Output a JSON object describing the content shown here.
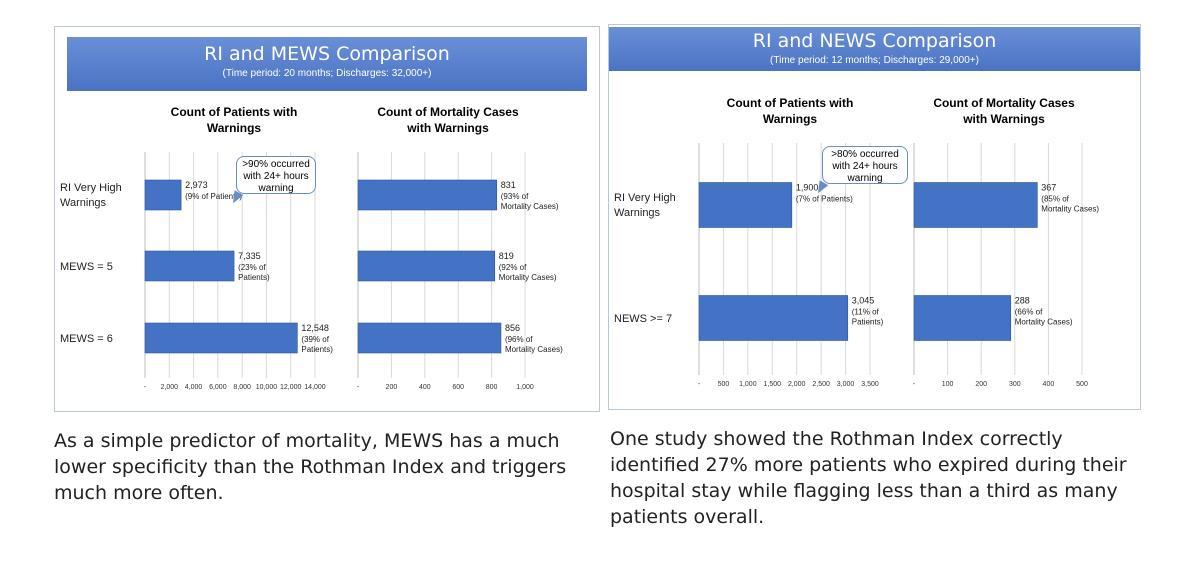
{
  "panels": [
    {
      "title": "RI and MEWS Comparison",
      "subtitle": "(Time period: 20 months; Discharges: 32,000+)",
      "callout": ">90% occurred with 24+ hours warning",
      "caption": "As a simple predictor of mortality, MEWS has a much lower specificity than the Rothman Index and triggers much more often."
    },
    {
      "title": "RI and NEWS Comparison",
      "subtitle": "(Time period: 12 months; Discharges: 29,000+)",
      "callout": ">80% occurred with 24+ hours warning",
      "caption": "One study showed the Rothman Index correctly identified 27% more patients who expired during their hospital stay while flagging less than a third as many patients overall."
    }
  ],
  "chart_data": [
    {
      "type": "bar",
      "title": "Count of Patients with Warnings",
      "categories": [
        "RI Very High Warnings",
        "MEWS = 5",
        "MEWS = 6"
      ],
      "values": [
        2973,
        7335,
        12548
      ],
      "value_labels": [
        "2,973",
        "7,335",
        "12,548"
      ],
      "annotations": [
        "(9% of Patients)",
        "(23% of Patients)",
        "(39% of Patients)"
      ],
      "xlim": [
        0,
        14000
      ],
      "xticks": [
        "-",
        "2,000",
        "4,000",
        "6,000",
        "8,000",
        "10,000",
        "12,000",
        "14,000"
      ],
      "color": "#4472c4"
    },
    {
      "type": "bar",
      "title": "Count of Mortality Cases with Warnings",
      "categories": [
        "RI Very High Warnings",
        "MEWS = 5",
        "MEWS = 6"
      ],
      "values": [
        831,
        819,
        856
      ],
      "value_labels": [
        "831",
        "819",
        "856"
      ],
      "annotations": [
        "(93% of Mortality Cases)",
        "(92% of Mortality Cases)",
        "(96% of Mortality Cases)"
      ],
      "xlim": [
        0,
        1000
      ],
      "xticks": [
        "-",
        "200",
        "400",
        "600",
        "800",
        "1,000"
      ],
      "color": "#4472c4"
    },
    {
      "type": "bar",
      "title": "Count of Patients with Warnings",
      "categories": [
        "RI Very High Warnings",
        "NEWS >= 7"
      ],
      "values": [
        1900,
        3045
      ],
      "value_labels": [
        "1,900",
        "3,045"
      ],
      "annotations": [
        "(7% of Patients)",
        "(11% of Patients)"
      ],
      "xlim": [
        0,
        3500
      ],
      "xticks": [
        "-",
        "500",
        "1,000",
        "1,500",
        "2,000",
        "2,500",
        "3,000",
        "3,500"
      ],
      "color": "#4472c4"
    },
    {
      "type": "bar",
      "title": "Count of Mortality Cases with Warnings",
      "categories": [
        "RI Very High Warnings",
        "NEWS >= 7"
      ],
      "values": [
        367,
        288
      ],
      "value_labels": [
        "367",
        "288"
      ],
      "annotations": [
        "(85% of Mortality Cases)",
        "(66% of Mortality Cases)"
      ],
      "xlim": [
        0,
        500
      ],
      "xticks": [
        "-",
        "100",
        "200",
        "300",
        "400",
        "500"
      ],
      "color": "#4472c4"
    }
  ]
}
